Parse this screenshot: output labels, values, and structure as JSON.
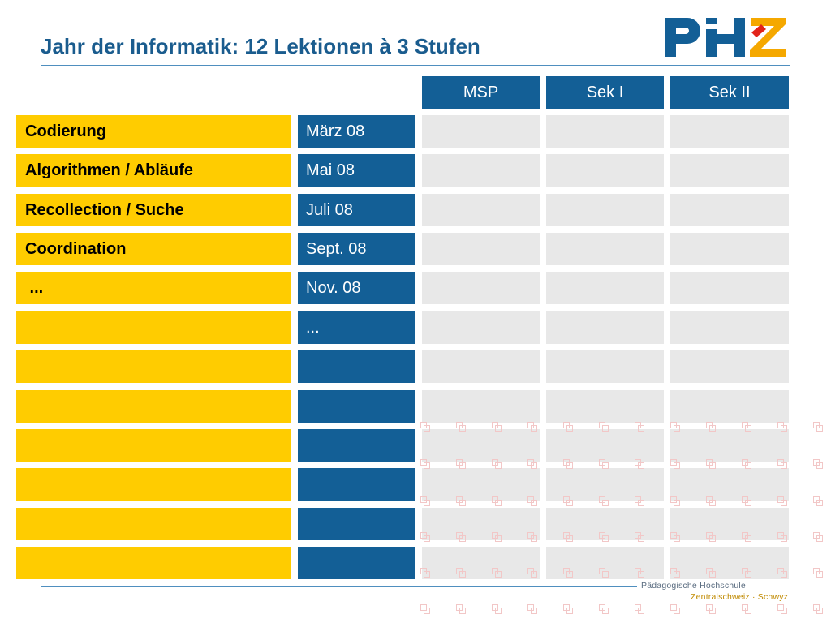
{
  "title": "Jahr der Informatik: 12 Lektionen à 3 Stufen",
  "headers": [
    "MSP",
    "Sek I",
    "Sek II"
  ],
  "rows": [
    {
      "topic": "Codierung",
      "date": "März 08"
    },
    {
      "topic": "Algorithmen / Abläufe",
      "date": "Mai 08"
    },
    {
      "topic": "Recollection / Suche",
      "date": "Juli 08"
    },
    {
      "topic": "Coordination",
      "date": "Sept. 08"
    },
    {
      "topic": " ...",
      "date": "Nov. 08"
    },
    {
      "topic": "",
      "date": "..."
    },
    {
      "topic": "",
      "date": ""
    },
    {
      "topic": "",
      "date": ""
    },
    {
      "topic": "",
      "date": ""
    },
    {
      "topic": "",
      "date": ""
    },
    {
      "topic": "",
      "date": ""
    },
    {
      "topic": "",
      "date": ""
    }
  ],
  "footer": {
    "line1": "Pädagogische Hochschule",
    "line2": "Zentralschweiz · Schwyz"
  },
  "colors": {
    "title": "#1a5c8e",
    "yellow": "#ffcc00",
    "blue": "#135f96",
    "grey": "#e8e8e8",
    "logo_orange": "#f5a800",
    "logo_red": "#e2231a"
  }
}
